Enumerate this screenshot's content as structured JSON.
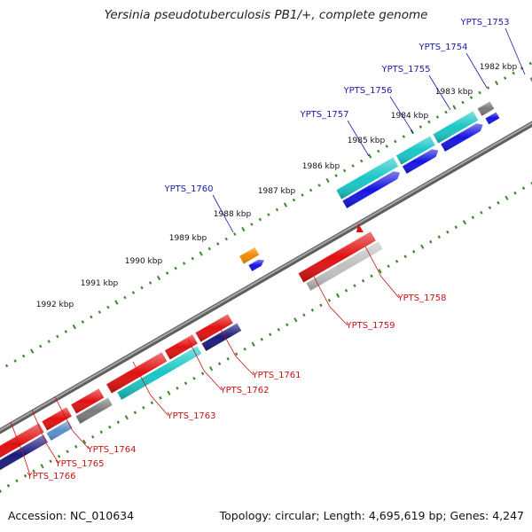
{
  "title": "Yersinia pseudotuberculosis PB1/+, complete genome",
  "footer": {
    "accession": "Accession: NC_010634",
    "summary": "Topology: circular; Length: 4,695,619 bp; Genes: 4,247"
  },
  "colors": {
    "backbone": "#808080",
    "tick": "#3a8a2a",
    "top_strand_label": "#1a1aa8",
    "bottom_strand_label": "#cc1111",
    "cyan": "#19c6c6",
    "blue": "#1414e0",
    "red": "#e01010",
    "navy": "#1a1a7a",
    "grey": "#7a7a7a",
    "orange": "#f08a00",
    "steel": "#5a8fc8",
    "light_grey": "#c0c0c0"
  },
  "scale_labels": [
    "1982 kbp",
    "1983 kbp",
    "1984 kbp",
    "1985 kbp",
    "1986 kbp",
    "1987 kbp",
    "1988 kbp",
    "1989 kbp",
    "1990 kbp",
    "1991 kbp",
    "1992 kbp"
  ],
  "gene_labels_top": [
    "YPTS_1753",
    "YPTS_1754",
    "YPTS_1755",
    "YPTS_1756",
    "YPTS_1757",
    "YPTS_1760"
  ],
  "gene_labels_bottom": [
    "YPTS_1758",
    "YPTS_1759",
    "YPTS_1761",
    "YPTS_1762",
    "YPTS_1763",
    "YPTS_1764",
    "YPTS_1765",
    "YPTS_1766"
  ]
}
